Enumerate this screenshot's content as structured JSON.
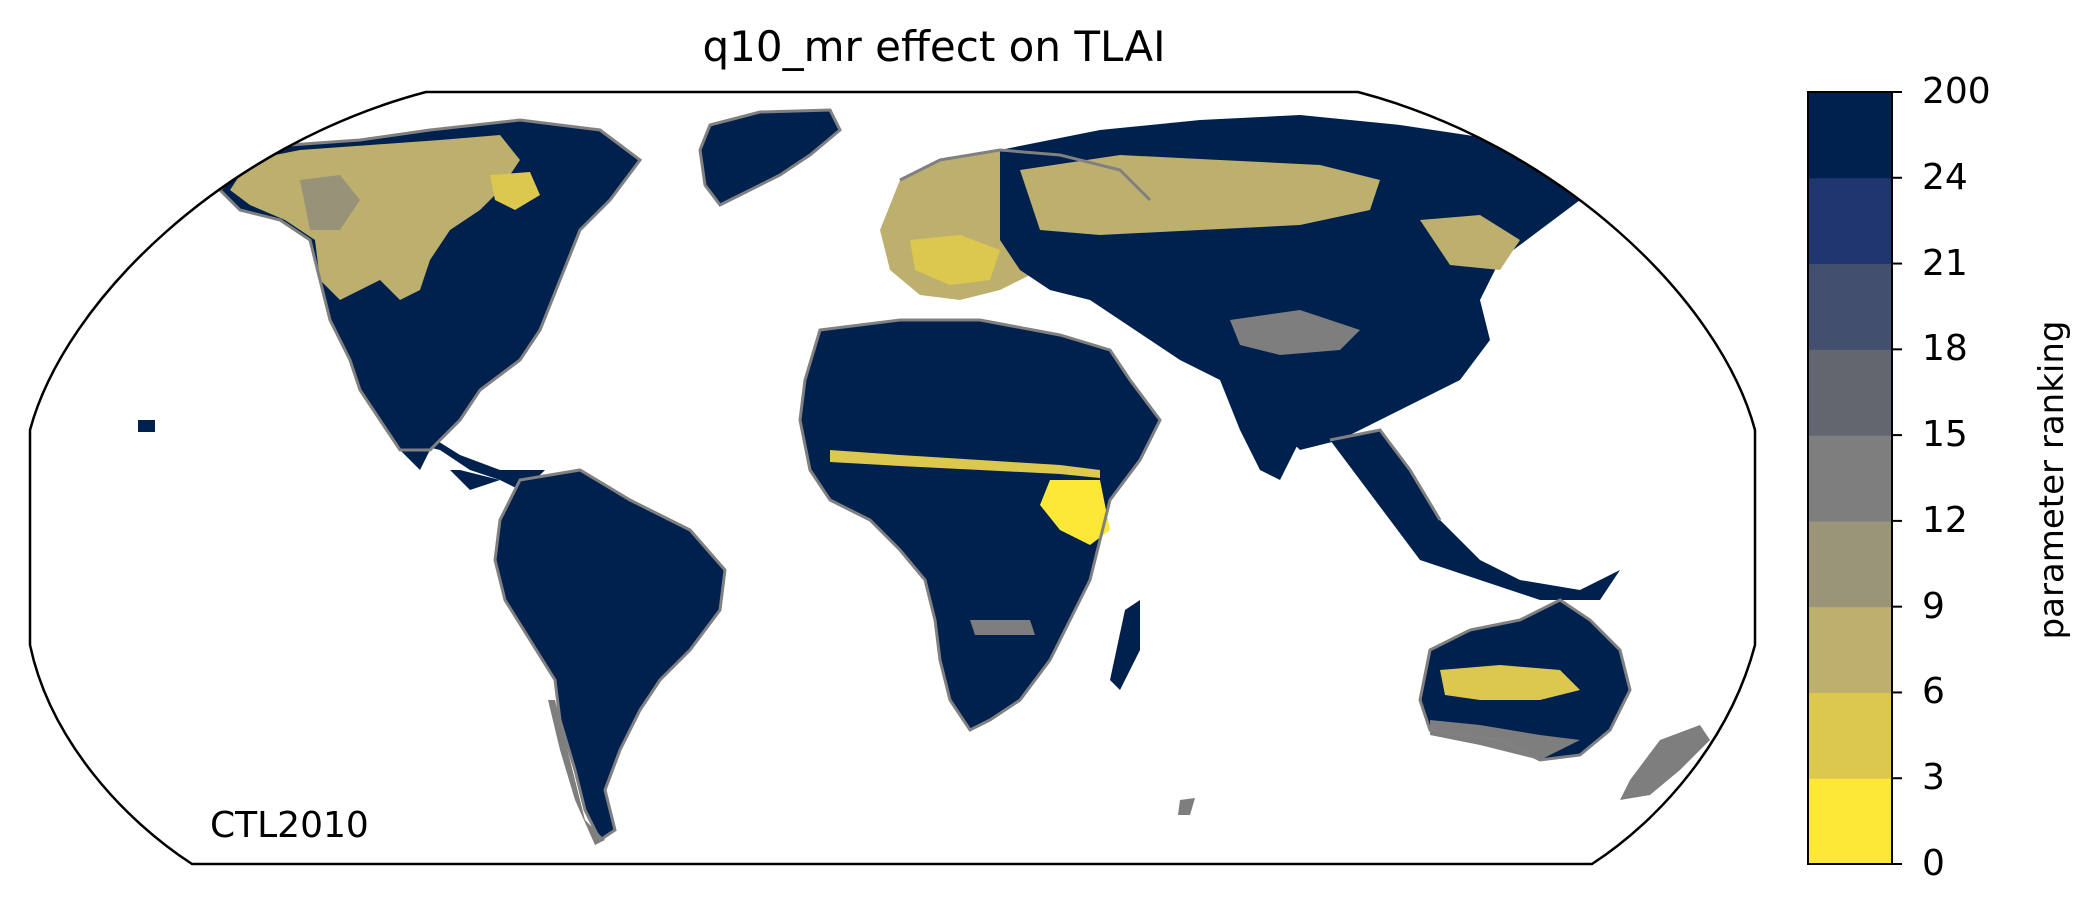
{
  "title": "q10_mr effect on TLAI",
  "corner_label": "CTL2010",
  "colorbar": {
    "label": "parameter ranking",
    "ticks": [
      "0",
      "3",
      "6",
      "9",
      "12",
      "15",
      "18",
      "21",
      "24",
      "200"
    ],
    "colors": [
      "#fde838",
      "#dcc84e",
      "#bdb06e",
      "#9a9478",
      "#7e7e7e",
      "#62666e",
      "#434f6e",
      "#1f376e",
      "#00204d"
    ]
  },
  "map": {
    "projection": "robinson",
    "background": "#ffffff",
    "ocean": "#ffffff",
    "coastline_color": "#808080",
    "dominant_land_color": "#00204d"
  }
}
